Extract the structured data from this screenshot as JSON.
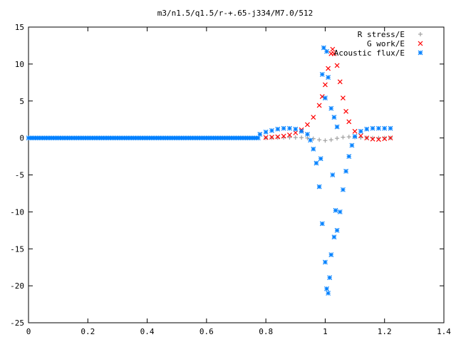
{
  "chart_data": {
    "type": "scatter",
    "title": "m3/n1.5/q1.5/r-+.65-j334/M7.0/512",
    "xlabel": "",
    "ylabel": "",
    "xlim": [
      0,
      1.4
    ],
    "ylim": [
      -25,
      15
    ],
    "x_ticks": [
      0,
      0.2,
      0.4,
      0.6,
      0.8,
      1,
      1.2,
      1.4
    ],
    "x_tick_labels": [
      "0",
      "0.2",
      "0.4",
      "0.6",
      "0.8",
      "1",
      "1.2",
      "1.4"
    ],
    "y_ticks": [
      -25,
      -20,
      -15,
      -10,
      -5,
      0,
      5,
      10,
      15
    ],
    "y_tick_labels": [
      "-25",
      "-20",
      "-15",
      "-10",
      "-5",
      "0",
      "5",
      "10",
      "15"
    ],
    "grid": false,
    "legend_position": "top-right",
    "series": [
      {
        "name": "R stress/E",
        "marker": "plus",
        "color": "#a0a0a0",
        "points": [
          [
            0.8,
            0
          ],
          [
            0.82,
            0.02
          ],
          [
            0.84,
            0.04
          ],
          [
            0.86,
            0.06
          ],
          [
            0.88,
            0.07
          ],
          [
            0.9,
            0.06
          ],
          [
            0.92,
            0.05
          ],
          [
            0.94,
            0
          ],
          [
            0.96,
            -0.1
          ],
          [
            0.98,
            -0.25
          ],
          [
            1.0,
            -0.35
          ],
          [
            1.02,
            -0.25
          ],
          [
            1.04,
            -0.05
          ],
          [
            1.06,
            0.1
          ],
          [
            1.08,
            0.15
          ],
          [
            1.1,
            0.1
          ],
          [
            1.12,
            0.05
          ],
          [
            1.14,
            0.02
          ],
          [
            1.16,
            0
          ],
          [
            1.18,
            0
          ],
          [
            1.2,
            0
          ],
          [
            1.22,
            0
          ]
        ]
      },
      {
        "name": "G work/E",
        "marker": "cross",
        "color": "#ff0000",
        "points": [
          [
            0.8,
            0.05
          ],
          [
            0.82,
            0.1
          ],
          [
            0.84,
            0.15
          ],
          [
            0.86,
            0.25
          ],
          [
            0.88,
            0.4
          ],
          [
            0.9,
            0.7
          ],
          [
            0.92,
            1.1
          ],
          [
            0.94,
            1.8
          ],
          [
            0.96,
            2.8
          ],
          [
            0.98,
            4.4
          ],
          [
            0.99,
            5.6
          ],
          [
            1.0,
            7.2
          ],
          [
            1.01,
            9.4
          ],
          [
            1.02,
            11.4
          ],
          [
            1.025,
            12.0
          ],
          [
            1.03,
            11.4
          ],
          [
            1.04,
            9.8
          ],
          [
            1.05,
            7.6
          ],
          [
            1.06,
            5.4
          ],
          [
            1.07,
            3.6
          ],
          [
            1.08,
            2.2
          ],
          [
            1.1,
            0.9
          ],
          [
            1.12,
            0.3
          ],
          [
            1.14,
            0
          ],
          [
            1.16,
            -0.15
          ],
          [
            1.18,
            -0.2
          ],
          [
            1.2,
            -0.1
          ],
          [
            1.22,
            0
          ]
        ]
      },
      {
        "name": "Acoustic flux/E",
        "marker": "star",
        "color": "#0080ff",
        "points": [
          [
            0.78,
            0.5
          ],
          [
            0.8,
            0.8
          ],
          [
            0.82,
            1.0
          ],
          [
            0.84,
            1.2
          ],
          [
            0.86,
            1.3
          ],
          [
            0.88,
            1.3
          ],
          [
            0.9,
            1.2
          ],
          [
            0.92,
            0.9
          ],
          [
            0.94,
            0.5
          ],
          [
            0.95,
            -0.3
          ],
          [
            0.96,
            -1.5
          ],
          [
            0.97,
            -3.4
          ],
          [
            0.98,
            -6.6
          ],
          [
            0.99,
            -11.6
          ],
          [
            1.0,
            -16.8
          ],
          [
            1.005,
            -20.4
          ],
          [
            1.01,
            -21.0
          ],
          [
            1.015,
            -18.9
          ],
          [
            1.02,
            -15.8
          ],
          [
            1.03,
            -13.4
          ],
          [
            1.04,
            -12.5
          ],
          [
            1.05,
            -10.0
          ],
          [
            1.06,
            -7.0
          ],
          [
            1.07,
            -4.5
          ],
          [
            1.08,
            -2.5
          ],
          [
            1.09,
            -1.0
          ],
          [
            1.1,
            0.2
          ],
          [
            1.12,
            0.9
          ],
          [
            1.14,
            1.2
          ],
          [
            1.16,
            1.3
          ],
          [
            1.18,
            1.3
          ],
          [
            1.2,
            1.3
          ],
          [
            1.22,
            1.3
          ],
          [
            0.995,
            12.2
          ],
          [
            1.005,
            11.7
          ],
          [
            0.99,
            8.6
          ],
          [
            1.01,
            8.2
          ],
          [
            1.0,
            5.4
          ],
          [
            1.02,
            4.0
          ],
          [
            1.03,
            2.8
          ],
          [
            1.04,
            1.5
          ],
          [
            1.025,
            -5.0
          ],
          [
            1.035,
            -9.8
          ],
          [
            0.985,
            -2.8
          ]
        ]
      }
    ]
  }
}
